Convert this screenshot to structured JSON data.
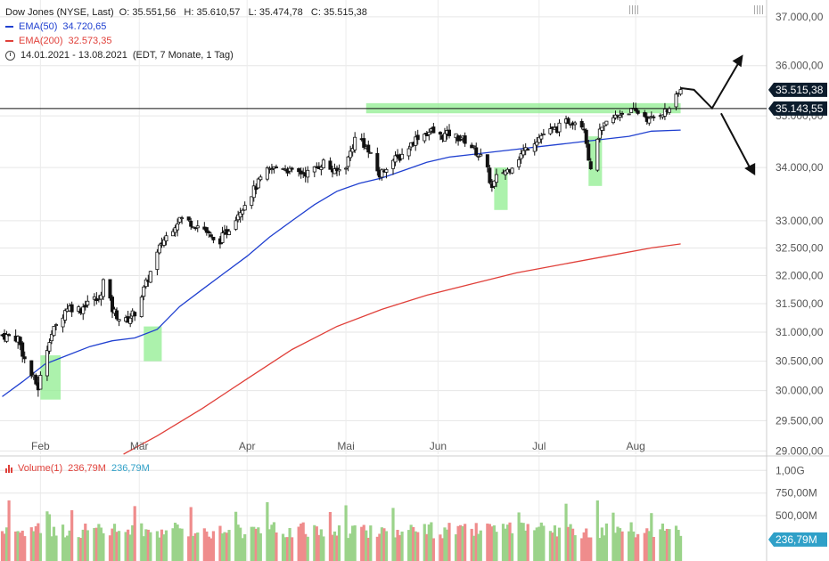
{
  "legend": {
    "instrument": "Dow Jones (NYSE, Last)",
    "ohlc": "O: 35.551,56   H: 35.610,57   L: 35.474,78   C: 35.515,38",
    "ema50_label": "EMA(50)",
    "ema50_value": "34.720,65",
    "ema200_label": "EMA(200)",
    "ema200_value": "32.573,35",
    "period": "14.01.2021 - 13.08.2021",
    "period_note": "(EDT, 7 Monate, 1 Tag)"
  },
  "volume_legend": {
    "label": "Volume(1)",
    "value1": "236,79M",
    "value2": "236,79M"
  },
  "colors": {
    "ema50": "#2040d0",
    "ema200": "#e0403a",
    "up_volume": "#9bd38a",
    "down_volume": "#ef8c8c",
    "highlight": "#90ee90",
    "price_tag": "#0c1c2c",
    "volume_tag": "#2fa0c8"
  },
  "chart_data": {
    "type": "candlestick",
    "x_ticks": [
      "Feb",
      "Mär",
      "Apr",
      "Mai",
      "Jun",
      "Jul",
      "Aug"
    ],
    "y_ticks": [
      "29.000,00",
      "29.500,00",
      "30.000,00",
      "30.500,00",
      "31.000,00",
      "31.500,00",
      "32.000,00",
      "32.500,00",
      "33.000,00",
      "34.000,00",
      "35.000,00",
      "36.000,00",
      "37.000,00"
    ],
    "y_tick_values": [
      29000,
      29500,
      30000,
      30500,
      31000,
      31500,
      32000,
      32500,
      33000,
      34000,
      35000,
      36000,
      37000
    ],
    "ylim": [
      28950,
      37350
    ],
    "y_scale": "log",
    "last_price_label": "35.515,38",
    "resistance_label": "35.143,55",
    "resistance_level": 35143.55,
    "volume_ticks": [
      "1,00G",
      "750,00M",
      "500,00M"
    ],
    "volume_tick_values": [
      1000,
      750,
      500
    ],
    "volume_last_label": "236,79M",
    "ohlc_waypoints": [
      [
        1,
        30950
      ],
      [
        8,
        30900
      ],
      [
        12,
        30400
      ],
      [
        17,
        30050
      ],
      [
        22,
        30900
      ],
      [
        30,
        31450
      ],
      [
        36,
        31400
      ],
      [
        40,
        31600
      ],
      [
        44,
        31550
      ],
      [
        46,
        31900
      ],
      [
        50,
        31400
      ],
      [
        55,
        31150
      ],
      [
        60,
        31350
      ],
      [
        66,
        31950
      ],
      [
        72,
        32600
      ],
      [
        80,
        33050
      ],
      [
        86,
        32950
      ],
      [
        91,
        32850
      ],
      [
        96,
        32550
      ],
      [
        101,
        32800
      ],
      [
        106,
        33150
      ],
      [
        111,
        33450
      ],
      [
        118,
        33900
      ],
      [
        125,
        34050
      ],
      [
        130,
        33900
      ],
      [
        138,
        33900
      ],
      [
        144,
        34100
      ],
      [
        149,
        33900
      ],
      [
        154,
        34050
      ],
      [
        158,
        34550
      ],
      [
        160,
        34600
      ],
      [
        164,
        34300
      ],
      [
        169,
        33850
      ],
      [
        173,
        34100
      ],
      [
        178,
        34200
      ],
      [
        186,
        34600
      ],
      [
        192,
        34700
      ],
      [
        196,
        34600
      ],
      [
        200,
        34650
      ],
      [
        208,
        34500
      ],
      [
        212,
        34300
      ],
      [
        216,
        34100
      ],
      [
        219,
        33600
      ],
      [
        222,
        33900
      ],
      [
        226,
        33950
      ],
      [
        230,
        34150
      ],
      [
        236,
        34450
      ],
      [
        242,
        34650
      ],
      [
        248,
        34750
      ],
      [
        253,
        34900
      ],
      [
        257,
        34900
      ],
      [
        260,
        34800
      ],
      [
        263,
        33900
      ],
      [
        266,
        34600
      ],
      [
        270,
        34850
      ],
      [
        276,
        35050
      ],
      [
        280,
        35100
      ],
      [
        286,
        35050
      ],
      [
        289,
        34900
      ],
      [
        293,
        35050
      ],
      [
        297,
        35100
      ],
      [
        301,
        35350
      ],
      [
        303,
        35515
      ]
    ],
    "ema50": [
      [
        1,
        29900
      ],
      [
        10,
        30150
      ],
      [
        20,
        30450
      ],
      [
        30,
        30600
      ],
      [
        40,
        30750
      ],
      [
        50,
        30850
      ],
      [
        60,
        30900
      ],
      [
        70,
        31050
      ],
      [
        80,
        31450
      ],
      [
        90,
        31750
      ],
      [
        100,
        32050
      ],
      [
        110,
        32350
      ],
      [
        120,
        32700
      ],
      [
        130,
        33000
      ],
      [
        140,
        33300
      ],
      [
        150,
        33550
      ],
      [
        160,
        33700
      ],
      [
        170,
        33800
      ],
      [
        180,
        33950
      ],
      [
        190,
        34100
      ],
      [
        200,
        34200
      ],
      [
        210,
        34250
      ],
      [
        220,
        34300
      ],
      [
        230,
        34350
      ],
      [
        240,
        34400
      ],
      [
        250,
        34450
      ],
      [
        260,
        34500
      ],
      [
        270,
        34550
      ],
      [
        280,
        34600
      ],
      [
        290,
        34700
      ],
      [
        303,
        34720.65
      ]
    ],
    "ema200": [
      [
        55,
        28950
      ],
      [
        70,
        29250
      ],
      [
        90,
        29700
      ],
      [
        110,
        30200
      ],
      [
        130,
        30700
      ],
      [
        150,
        31100
      ],
      [
        170,
        31400
      ],
      [
        190,
        31650
      ],
      [
        210,
        31850
      ],
      [
        230,
        32050
      ],
      [
        250,
        32200
      ],
      [
        270,
        32350
      ],
      [
        290,
        32500
      ],
      [
        303,
        32573.35
      ]
    ],
    "forecast_arrows": [
      {
        "from": [
          303,
          35550
        ],
        "via": [
          317,
          35150
        ],
        "to": [
          330,
          36150
        ]
      },
      {
        "from": [
          321,
          35050
        ],
        "to": [
          335,
          33900
        ]
      }
    ],
    "highlight_boxes": [
      {
        "x0": 18,
        "x1": 27,
        "y0": 29850,
        "y1": 30600
      },
      {
        "x0": 64,
        "x1": 72,
        "y0": 30500,
        "y1": 31100
      },
      {
        "x0": 163,
        "x1": 303,
        "y0": 35050,
        "y1": 35250
      },
      {
        "x0": 220,
        "x1": 226,
        "y0": 33200,
        "y1": 34000
      },
      {
        "x0": 262,
        "x1": 268,
        "y0": 33650,
        "y1": 34600
      }
    ]
  }
}
